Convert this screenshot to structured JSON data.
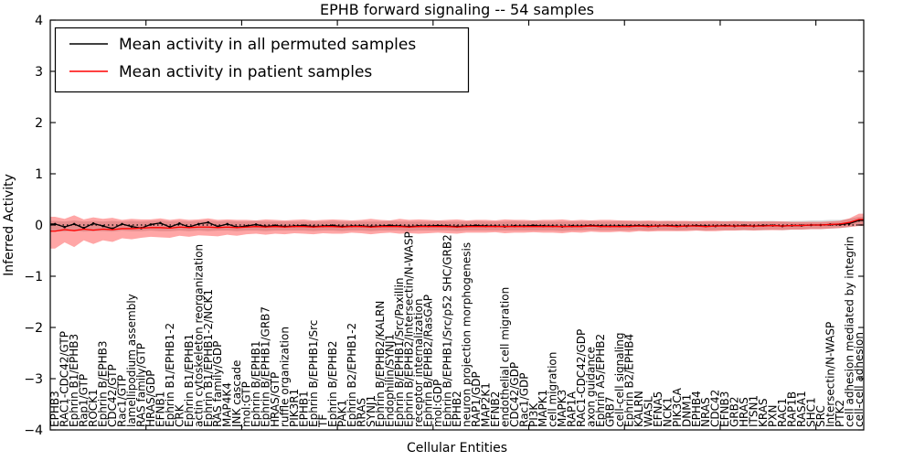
{
  "title": "EPHB forward signaling -- 54 samples",
  "xlabel": "Cellular Entities",
  "ylabel": "Inferred Activity",
  "legend": [
    {
      "label": "Mean activity in all permuted samples",
      "color": "#000000"
    },
    {
      "label": "Mean activity in patient samples",
      "color": "#ff0000"
    }
  ],
  "yticks": {
    "values": [
      4,
      3,
      2,
      1,
      0,
      -1,
      -2,
      -3,
      -4
    ],
    "labels": [
      "4",
      "3",
      "2",
      "1",
      "0",
      "−1",
      "−2",
      "−3",
      "−4"
    ]
  },
  "chart_data": {
    "type": "line",
    "title": "EPHB forward signaling -- 54 samples",
    "xlabel": "Cellular Entities",
    "ylabel": "Inferred Activity",
    "ylim": [
      -4,
      4
    ],
    "grid": false,
    "legend_position": "upper left",
    "zero_line": 0,
    "xticks_every": 10,
    "categories": [
      "EPHB3",
      "RAC1-CDC42/GTP",
      "Ephrin B1/EPHB3",
      "Rap1/GTP",
      "ROCK1",
      "Ephrin B/EPHB3",
      "CDC42/GTP",
      "Rac1/GTP",
      "lamellipodium assembly",
      "RAS family/GTP",
      "HRAS/GDP",
      "EFNB1",
      "Ephrin B1/EPHB1-2",
      "CRK",
      "Ephrin B1/EPHB1",
      "actin cytoskeleton reorganization",
      "Ephrin B1/EPHB1-2/NCK1",
      "RAS family/GDP",
      "MAP4K4",
      "JNK cascade",
      "mol:GTP",
      "Ephrin B/EPHB1",
      "Ephrin B/EPHB1/GRB7",
      "HRAS/GTP",
      "ruffle organization",
      "PIK3R1",
      "EPHB1",
      "Ephrin B/EPHB1/Src",
      "TF",
      "Ephrin B/EPHB2",
      "PAK1",
      "Ephrin B2/EPHB1-2",
      "RRAS",
      "SYNJ1",
      "Ephrin B/EPHB2/KALRN",
      "Endophilin/SYNJ1",
      "Ephrin B/EPHB1/Src/Paxillin",
      "Ephrin B/EPHB2/Intersectin/N-WASP",
      "receptor internalization",
      "Ephrin B/EPHB2/RasGAP",
      "mol:GDP",
      "Ephrin B/EPHB1/Src/p52 SHC/GRB2",
      "EPHB2",
      "neuron projection morphogenesis",
      "RAP1/GDP",
      "MAP2K1",
      "EFNB2",
      "endothelial cell migration",
      "CDC42/GDP",
      "Rac1/GDP",
      "PI3K",
      "MAPK1",
      "cell migration",
      "MAPK3",
      "RAP1A",
      "RAC1-CDC42/GDP",
      "axon guidance",
      "Ephrin A5/EPHB2",
      "GRB7",
      "cell-cell signaling",
      "Ephrin B2/EPHB4",
      "KALRN",
      "WASL",
      "EFNA5",
      "NCK1",
      "PIK3CA",
      "DNM1",
      "EPHB4",
      "NRAS",
      "CDC42",
      "EFNB3",
      "GRB2",
      "HRAS",
      "ITSN1",
      "KRAS",
      "PXN",
      "RAC1",
      "RAP1B",
      "RASA1",
      "SHC1",
      "SRC",
      "Intersectin/N-WASP",
      "PTK2",
      "cell adhesion mediated by integrin",
      "cell-cell adhesion"
    ],
    "series": [
      {
        "name": "Mean activity in all permuted samples",
        "color": "#000000",
        "markers": true,
        "values": [
          0.02,
          -0.04,
          0.02,
          -0.06,
          0.03,
          -0.02,
          -0.07,
          0.02,
          -0.03,
          -0.06,
          0.01,
          0.04,
          -0.04,
          0.03,
          -0.04,
          0.02,
          0.05,
          -0.03,
          0.02,
          -0.04,
          -0.02,
          0.01,
          -0.03,
          -0.01,
          -0.03,
          -0.02,
          -0.01,
          -0.03,
          -0.02,
          -0.01,
          -0.03,
          -0.02,
          -0.02,
          -0.03,
          -0.02,
          -0.01,
          -0.02,
          -0.03,
          -0.02,
          -0.02,
          -0.01,
          -0.02,
          -0.03,
          -0.02,
          -0.01,
          -0.02,
          -0.02,
          -0.03,
          -0.02,
          -0.02,
          -0.01,
          -0.02,
          -0.02,
          -0.03,
          -0.02,
          -0.02,
          -0.01,
          -0.02,
          -0.02,
          -0.02,
          -0.02,
          -0.01,
          -0.02,
          -0.02,
          -0.01,
          -0.02,
          -0.02,
          -0.01,
          -0.02,
          -0.02,
          -0.01,
          -0.02,
          -0.01,
          -0.02,
          -0.01,
          -0.01,
          -0.02,
          -0.01,
          -0.01,
          0.0,
          0.0,
          0.01,
          0.01,
          0.03,
          0.09
        ]
      },
      {
        "name": "Mean activity in patient samples",
        "color": "#ff0000",
        "markers": false,
        "values": [
          -0.12,
          -0.09,
          -0.11,
          -0.08,
          -0.1,
          -0.08,
          -0.09,
          -0.07,
          -0.07,
          -0.06,
          -0.05,
          -0.05,
          -0.06,
          -0.04,
          -0.05,
          -0.04,
          -0.04,
          -0.05,
          -0.04,
          -0.05,
          -0.04,
          -0.03,
          -0.04,
          -0.03,
          -0.04,
          -0.03,
          -0.03,
          -0.04,
          -0.03,
          -0.03,
          -0.04,
          -0.03,
          -0.03,
          -0.04,
          -0.03,
          -0.03,
          -0.03,
          -0.04,
          -0.03,
          -0.03,
          -0.03,
          -0.03,
          -0.04,
          -0.03,
          -0.03,
          -0.03,
          -0.03,
          -0.03,
          -0.03,
          -0.03,
          -0.03,
          -0.03,
          -0.03,
          -0.03,
          -0.03,
          -0.03,
          -0.02,
          -0.03,
          -0.03,
          -0.03,
          -0.03,
          -0.02,
          -0.03,
          -0.02,
          -0.02,
          -0.03,
          -0.02,
          -0.02,
          -0.03,
          -0.02,
          -0.02,
          -0.02,
          -0.02,
          -0.02,
          -0.02,
          -0.01,
          -0.02,
          -0.01,
          -0.01,
          0.0,
          0.0,
          0.01,
          0.02,
          0.05,
          0.11
        ]
      }
    ],
    "bands": [
      {
        "name": "permuted samples range",
        "color": "#aaaaaa",
        "opacity": 0.45,
        "upper": [
          0.08,
          0.07,
          0.09,
          0.07,
          0.08,
          0.07,
          0.08,
          0.07,
          0.08,
          0.07,
          0.08,
          0.09,
          0.07,
          0.08,
          0.07,
          0.08,
          0.09,
          0.07,
          0.08,
          0.07,
          0.07,
          0.08,
          0.07,
          0.07,
          0.07,
          0.07,
          0.07,
          0.07,
          0.07,
          0.08,
          0.07,
          0.07,
          0.07,
          0.07,
          0.07,
          0.08,
          0.07,
          0.07,
          0.07,
          0.07,
          0.08,
          0.07,
          0.07,
          0.07,
          0.08,
          0.07,
          0.07,
          0.07,
          0.08,
          0.07,
          0.08,
          0.07,
          0.07,
          0.07,
          0.07,
          0.07,
          0.08,
          0.07,
          0.07,
          0.08,
          0.07,
          0.08,
          0.07,
          0.07,
          0.08,
          0.07,
          0.07,
          0.08,
          0.07,
          0.07,
          0.08,
          0.07,
          0.08,
          0.07,
          0.08,
          0.08,
          0.07,
          0.08,
          0.08,
          0.09,
          0.09,
          0.1,
          0.1,
          0.12,
          0.16
        ],
        "lower": [
          -0.12,
          -0.13,
          -0.11,
          -0.13,
          -0.12,
          -0.12,
          -0.13,
          -0.11,
          -0.12,
          -0.12,
          -0.11,
          -0.12,
          -0.12,
          -0.11,
          -0.12,
          -0.11,
          -0.12,
          -0.11,
          -0.11,
          -0.12,
          -0.11,
          -0.11,
          -0.12,
          -0.11,
          -0.11,
          -0.11,
          -0.11,
          -0.12,
          -0.11,
          -0.11,
          -0.12,
          -0.11,
          -0.11,
          -0.12,
          -0.11,
          -0.11,
          -0.11,
          -0.12,
          -0.11,
          -0.11,
          -0.11,
          -0.11,
          -0.12,
          -0.11,
          -0.11,
          -0.11,
          -0.11,
          -0.11,
          -0.11,
          -0.11,
          -0.11,
          -0.11,
          -0.11,
          -0.12,
          -0.11,
          -0.11,
          -0.1,
          -0.11,
          -0.11,
          -0.11,
          -0.11,
          -0.1,
          -0.11,
          -0.1,
          -0.1,
          -0.11,
          -0.1,
          -0.1,
          -0.11,
          -0.1,
          -0.1,
          -0.1,
          -0.1,
          -0.1,
          -0.1,
          -0.09,
          -0.1,
          -0.09,
          -0.09,
          -0.08,
          -0.08,
          -0.07,
          -0.06,
          -0.04,
          -0.01
        ]
      },
      {
        "name": "patient samples range",
        "color": "#ff0000",
        "opacity": 0.35,
        "upper": [
          0.16,
          0.12,
          0.19,
          0.11,
          0.15,
          0.12,
          0.14,
          0.1,
          0.12,
          0.11,
          0.11,
          0.13,
          0.1,
          0.12,
          0.1,
          0.11,
          0.13,
          0.1,
          0.11,
          0.1,
          0.1,
          0.09,
          0.11,
          0.1,
          0.09,
          0.1,
          0.11,
          0.09,
          0.1,
          0.11,
          0.1,
          0.09,
          0.1,
          0.12,
          0.1,
          0.09,
          0.12,
          0.1,
          0.11,
          0.1,
          0.09,
          0.1,
          0.11,
          0.09,
          0.1,
          0.1,
          0.09,
          0.11,
          0.1,
          0.1,
          0.09,
          0.1,
          0.1,
          0.11,
          0.09,
          0.1,
          0.09,
          0.1,
          0.1,
          0.09,
          0.09,
          0.08,
          0.09,
          0.08,
          0.08,
          0.08,
          0.08,
          0.07,
          0.08,
          0.08,
          0.07,
          0.08,
          0.07,
          0.07,
          0.07,
          0.07,
          0.07,
          0.06,
          0.06,
          0.06,
          0.06,
          0.07,
          0.08,
          0.13,
          0.22
        ],
        "lower": [
          -0.46,
          -0.34,
          -0.43,
          -0.3,
          -0.37,
          -0.3,
          -0.33,
          -0.26,
          -0.28,
          -0.25,
          -0.23,
          -0.24,
          -0.25,
          -0.21,
          -0.23,
          -0.2,
          -0.21,
          -0.22,
          -0.19,
          -0.21,
          -0.18,
          -0.17,
          -0.19,
          -0.17,
          -0.18,
          -0.16,
          -0.17,
          -0.18,
          -0.16,
          -0.17,
          -0.17,
          -0.15,
          -0.16,
          -0.18,
          -0.16,
          -0.15,
          -0.17,
          -0.16,
          -0.17,
          -0.16,
          -0.15,
          -0.16,
          -0.17,
          -0.15,
          -0.15,
          -0.15,
          -0.14,
          -0.16,
          -0.15,
          -0.15,
          -0.14,
          -0.15,
          -0.15,
          -0.16,
          -0.14,
          -0.15,
          -0.13,
          -0.14,
          -0.14,
          -0.13,
          -0.14,
          -0.12,
          -0.13,
          -0.12,
          -0.12,
          -0.12,
          -0.12,
          -0.11,
          -0.12,
          -0.12,
          -0.11,
          -0.11,
          -0.1,
          -0.11,
          -0.1,
          -0.1,
          -0.1,
          -0.09,
          -0.09,
          -0.08,
          -0.08,
          -0.07,
          -0.06,
          -0.04,
          -0.02
        ]
      }
    ]
  }
}
